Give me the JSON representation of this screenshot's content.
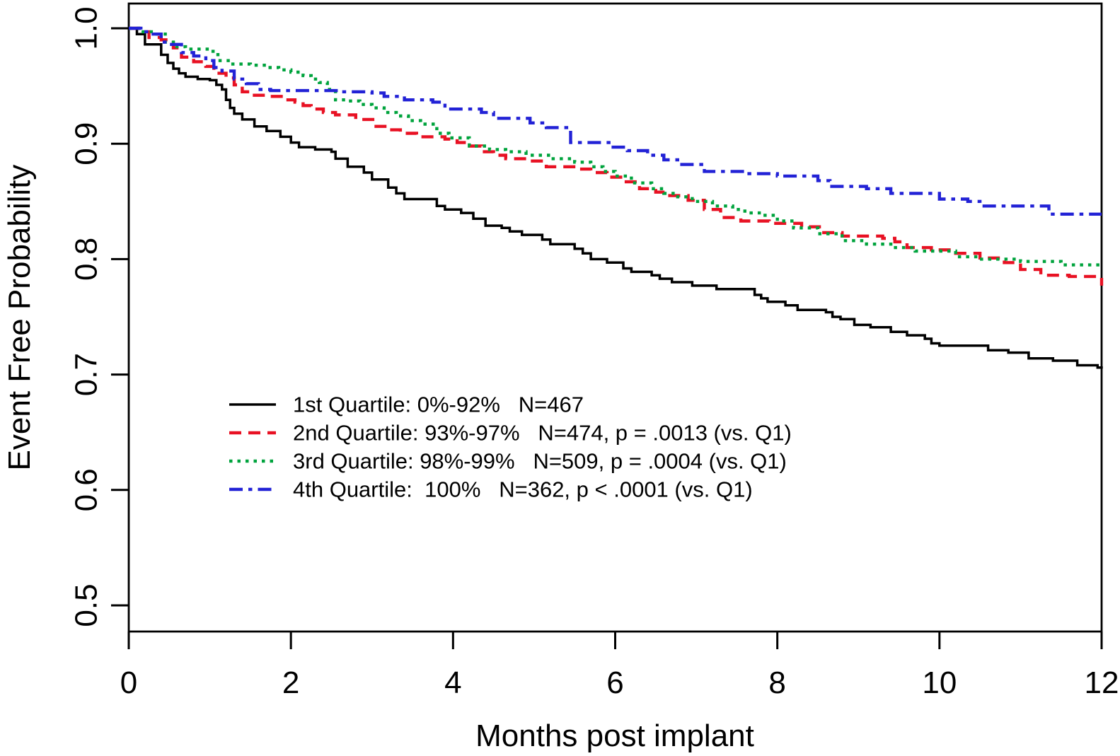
{
  "chart_data": {
    "type": "line",
    "subtype": "step-survival",
    "title": "",
    "xlabel": "Months post implant",
    "ylabel": "Event Free Probability",
    "xlim": [
      0,
      12
    ],
    "ylim": [
      0.5,
      1.0
    ],
    "x_ticks": [
      0,
      2,
      4,
      6,
      8,
      10,
      12
    ],
    "y_ticks": [
      1.0,
      0.9,
      0.8,
      0.7,
      0.6,
      0.5
    ],
    "grid": false,
    "plot_border": "full-box",
    "legend_position": "inside-center-left",
    "series": [
      {
        "name": "Q1",
        "label": "1st Quartile: 0%-92%   N=467",
        "range": "0%-92%",
        "n": 467,
        "p_value": "",
        "color": "#000000",
        "style": "solid",
        "points": [
          [
            0,
            1.0
          ],
          [
            0.1,
            0.995
          ],
          [
            0.2,
            0.986
          ],
          [
            0.4,
            0.977
          ],
          [
            0.48,
            0.97
          ],
          [
            0.55,
            0.965
          ],
          [
            0.62,
            0.961
          ],
          [
            0.7,
            0.958
          ],
          [
            0.85,
            0.956
          ],
          [
            1.0,
            0.955
          ],
          [
            1.08,
            0.951
          ],
          [
            1.15,
            0.947
          ],
          [
            1.2,
            0.938
          ],
          [
            1.25,
            0.931
          ],
          [
            1.3,
            0.926
          ],
          [
            1.4,
            0.921
          ],
          [
            1.55,
            0.915
          ],
          [
            1.7,
            0.911
          ],
          [
            1.87,
            0.906
          ],
          [
            2.0,
            0.901
          ],
          [
            2.1,
            0.897
          ],
          [
            2.3,
            0.895
          ],
          [
            2.5,
            0.893
          ],
          [
            2.55,
            0.887
          ],
          [
            2.7,
            0.88
          ],
          [
            2.9,
            0.875
          ],
          [
            3.0,
            0.869
          ],
          [
            3.2,
            0.862
          ],
          [
            3.3,
            0.857
          ],
          [
            3.4,
            0.852
          ],
          [
            3.8,
            0.846
          ],
          [
            3.9,
            0.843
          ],
          [
            4.1,
            0.84
          ],
          [
            4.25,
            0.835
          ],
          [
            4.4,
            0.829
          ],
          [
            4.6,
            0.827
          ],
          [
            4.7,
            0.824
          ],
          [
            4.85,
            0.821
          ],
          [
            5.1,
            0.817
          ],
          [
            5.2,
            0.813
          ],
          [
            5.5,
            0.809
          ],
          [
            5.6,
            0.805
          ],
          [
            5.7,
            0.8
          ],
          [
            5.9,
            0.797
          ],
          [
            6.1,
            0.792
          ],
          [
            6.2,
            0.789
          ],
          [
            6.45,
            0.786
          ],
          [
            6.55,
            0.783
          ],
          [
            6.7,
            0.78
          ],
          [
            6.95,
            0.777
          ],
          [
            7.25,
            0.774
          ],
          [
            7.72,
            0.769
          ],
          [
            7.8,
            0.766
          ],
          [
            7.88,
            0.763
          ],
          [
            8.1,
            0.76
          ],
          [
            8.25,
            0.756
          ],
          [
            8.6,
            0.754
          ],
          [
            8.68,
            0.75
          ],
          [
            8.78,
            0.748
          ],
          [
            8.95,
            0.743
          ],
          [
            9.15,
            0.741
          ],
          [
            9.4,
            0.737
          ],
          [
            9.6,
            0.734
          ],
          [
            9.82,
            0.731
          ],
          [
            9.9,
            0.727
          ],
          [
            10.0,
            0.725
          ],
          [
            10.6,
            0.721
          ],
          [
            10.85,
            0.719
          ],
          [
            11.1,
            0.714
          ],
          [
            11.4,
            0.712
          ],
          [
            11.7,
            0.708
          ],
          [
            11.95,
            0.706
          ],
          [
            12,
            0.705
          ]
        ]
      },
      {
        "name": "Q2",
        "label": "2nd Quartile: 93%-97%   N=474, p = .0013 (vs. Q1)",
        "range": "93%-97%",
        "n": 474,
        "p_value": "p = .0013 (vs. Q1)",
        "color": "#e81123",
        "style": "dashed",
        "points": [
          [
            0,
            1.0
          ],
          [
            0.15,
            0.997
          ],
          [
            0.25,
            0.992
          ],
          [
            0.4,
            0.99
          ],
          [
            0.55,
            0.983
          ],
          [
            0.65,
            0.975
          ],
          [
            0.8,
            0.971
          ],
          [
            0.95,
            0.967
          ],
          [
            1.05,
            0.961
          ],
          [
            1.2,
            0.957
          ],
          [
            1.3,
            0.951
          ],
          [
            1.4,
            0.945
          ],
          [
            1.5,
            0.942
          ],
          [
            1.75,
            0.941
          ],
          [
            1.9,
            0.938
          ],
          [
            2.05,
            0.936
          ],
          [
            2.15,
            0.933
          ],
          [
            2.25,
            0.93
          ],
          [
            2.4,
            0.927
          ],
          [
            2.55,
            0.925
          ],
          [
            2.8,
            0.921
          ],
          [
            3.05,
            0.915
          ],
          [
            3.2,
            0.912
          ],
          [
            3.35,
            0.909
          ],
          [
            3.55,
            0.906
          ],
          [
            3.9,
            0.904
          ],
          [
            4.05,
            0.901
          ],
          [
            4.2,
            0.898
          ],
          [
            4.35,
            0.893
          ],
          [
            4.5,
            0.89
          ],
          [
            4.65,
            0.887
          ],
          [
            4.95,
            0.885
          ],
          [
            5.15,
            0.88
          ],
          [
            5.55,
            0.878
          ],
          [
            5.7,
            0.875
          ],
          [
            5.9,
            0.871
          ],
          [
            6.1,
            0.867
          ],
          [
            6.3,
            0.861
          ],
          [
            6.5,
            0.858
          ],
          [
            6.65,
            0.855
          ],
          [
            6.9,
            0.851
          ],
          [
            7.1,
            0.843
          ],
          [
            7.3,
            0.836
          ],
          [
            7.55,
            0.833
          ],
          [
            7.9,
            0.831
          ],
          [
            8.3,
            0.828
          ],
          [
            8.55,
            0.823
          ],
          [
            8.8,
            0.82
          ],
          [
            9.3,
            0.818
          ],
          [
            9.45,
            0.815
          ],
          [
            9.6,
            0.81
          ],
          [
            9.9,
            0.808
          ],
          [
            10.2,
            0.805
          ],
          [
            10.5,
            0.801
          ],
          [
            10.8,
            0.797
          ],
          [
            11.0,
            0.791
          ],
          [
            11.25,
            0.786
          ],
          [
            11.6,
            0.785
          ],
          [
            11.95,
            0.784
          ],
          [
            12,
            0.777
          ]
        ]
      },
      {
        "name": "Q3",
        "label": "3rd Quartile: 98%-99%   N=509, p = .0004 (vs. Q1)",
        "range": "98%-99%",
        "n": 509,
        "p_value": "p = .0004 (vs. Q1)",
        "color": "#00a33d",
        "style": "dotted",
        "points": [
          [
            0,
            1.0
          ],
          [
            0.15,
            0.997
          ],
          [
            0.3,
            0.995
          ],
          [
            0.45,
            0.988
          ],
          [
            0.55,
            0.984
          ],
          [
            0.7,
            0.982
          ],
          [
            1.0,
            0.98
          ],
          [
            1.1,
            0.972
          ],
          [
            1.25,
            0.969
          ],
          [
            1.5,
            0.968
          ],
          [
            1.7,
            0.966
          ],
          [
            1.85,
            0.964
          ],
          [
            2.0,
            0.962
          ],
          [
            2.15,
            0.959
          ],
          [
            2.25,
            0.956
          ],
          [
            2.35,
            0.953
          ],
          [
            2.45,
            0.947
          ],
          [
            2.55,
            0.938
          ],
          [
            2.7,
            0.937
          ],
          [
            2.85,
            0.934
          ],
          [
            3.0,
            0.931
          ],
          [
            3.15,
            0.927
          ],
          [
            3.3,
            0.924
          ],
          [
            3.45,
            0.92
          ],
          [
            3.6,
            0.917
          ],
          [
            3.8,
            0.909
          ],
          [
            3.95,
            0.905
          ],
          [
            4.2,
            0.898
          ],
          [
            4.45,
            0.895
          ],
          [
            4.65,
            0.893
          ],
          [
            4.9,
            0.89
          ],
          [
            5.2,
            0.887
          ],
          [
            5.5,
            0.884
          ],
          [
            5.7,
            0.88
          ],
          [
            5.85,
            0.876
          ],
          [
            6.0,
            0.872
          ],
          [
            6.2,
            0.866
          ],
          [
            6.45,
            0.861
          ],
          [
            6.6,
            0.857
          ],
          [
            6.75,
            0.854
          ],
          [
            6.95,
            0.85
          ],
          [
            7.2,
            0.846
          ],
          [
            7.45,
            0.843
          ],
          [
            7.6,
            0.84
          ],
          [
            7.8,
            0.838
          ],
          [
            8.0,
            0.833
          ],
          [
            8.2,
            0.827
          ],
          [
            8.5,
            0.822
          ],
          [
            8.8,
            0.816
          ],
          [
            9.1,
            0.813
          ],
          [
            9.4,
            0.81
          ],
          [
            9.7,
            0.807
          ],
          [
            10.2,
            0.802
          ],
          [
            10.5,
            0.8
          ],
          [
            11.0,
            0.798
          ],
          [
            11.5,
            0.795
          ],
          [
            12,
            0.795
          ]
        ]
      },
      {
        "name": "Q4",
        "label": "4th Quartile:  100%   N=362, p < .0001 (vs. Q1)",
        "range": "100%",
        "n": 362,
        "p_value": "p < .0001 (vs. Q1)",
        "color": "#2222d6",
        "style": "dashdot",
        "points": [
          [
            0,
            1.0
          ],
          [
            0.15,
            0.997
          ],
          [
            0.3,
            0.995
          ],
          [
            0.4,
            0.988
          ],
          [
            0.5,
            0.986
          ],
          [
            0.65,
            0.979
          ],
          [
            0.8,
            0.976
          ],
          [
            0.95,
            0.972
          ],
          [
            1.05,
            0.966
          ],
          [
            1.15,
            0.963
          ],
          [
            1.3,
            0.956
          ],
          [
            1.45,
            0.952
          ],
          [
            1.6,
            0.947
          ],
          [
            1.75,
            0.946
          ],
          [
            2.6,
            0.945
          ],
          [
            3.0,
            0.944
          ],
          [
            3.15,
            0.941
          ],
          [
            3.4,
            0.938
          ],
          [
            3.75,
            0.936
          ],
          [
            3.9,
            0.93
          ],
          [
            4.35,
            0.927
          ],
          [
            4.5,
            0.922
          ],
          [
            4.95,
            0.918
          ],
          [
            5.15,
            0.914
          ],
          [
            5.45,
            0.901
          ],
          [
            5.95,
            0.897
          ],
          [
            6.15,
            0.894
          ],
          [
            6.4,
            0.89
          ],
          [
            6.6,
            0.886
          ],
          [
            6.8,
            0.882
          ],
          [
            7.1,
            0.876
          ],
          [
            7.6,
            0.874
          ],
          [
            8.0,
            0.872
          ],
          [
            8.5,
            0.868
          ],
          [
            8.65,
            0.863
          ],
          [
            9.1,
            0.861
          ],
          [
            9.4,
            0.857
          ],
          [
            10.0,
            0.852
          ],
          [
            10.35,
            0.85
          ],
          [
            10.5,
            0.846
          ],
          [
            11.35,
            0.839
          ],
          [
            12,
            0.839
          ]
        ]
      }
    ]
  }
}
